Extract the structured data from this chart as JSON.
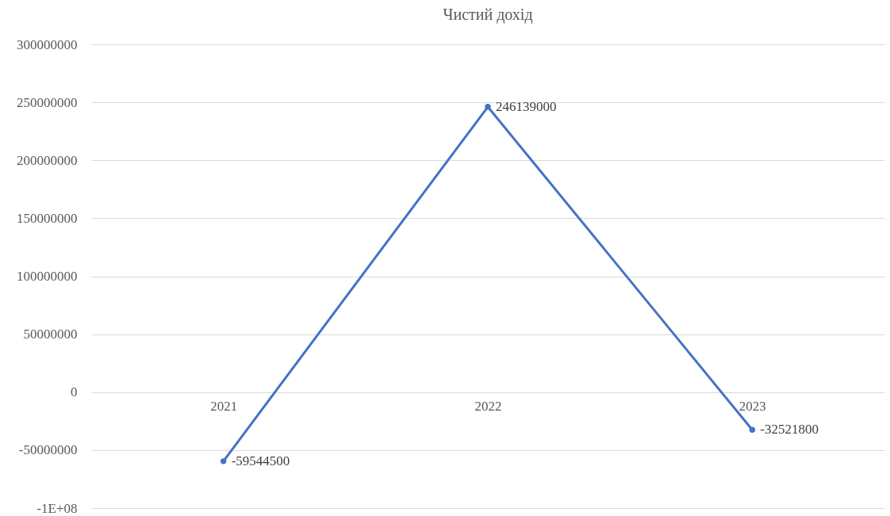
{
  "chart_data": {
    "type": "line",
    "title": "Чистий дохід",
    "categories": [
      "2021",
      "2022",
      "2023"
    ],
    "series": [
      {
        "color": "#4472c4",
        "values": [
          -59544500,
          246139000,
          -32521800
        ]
      }
    ],
    "ylim": [
      -100000000,
      300000000
    ],
    "yticks": [
      {
        "value": -100000000,
        "label": "-1E+08"
      },
      -50000000,
      0,
      50000000,
      100000000,
      150000000,
      200000000,
      250000000,
      300000000
    ],
    "grid": "y",
    "marker": "circle",
    "line_style": "solid",
    "data_labels": true
  }
}
